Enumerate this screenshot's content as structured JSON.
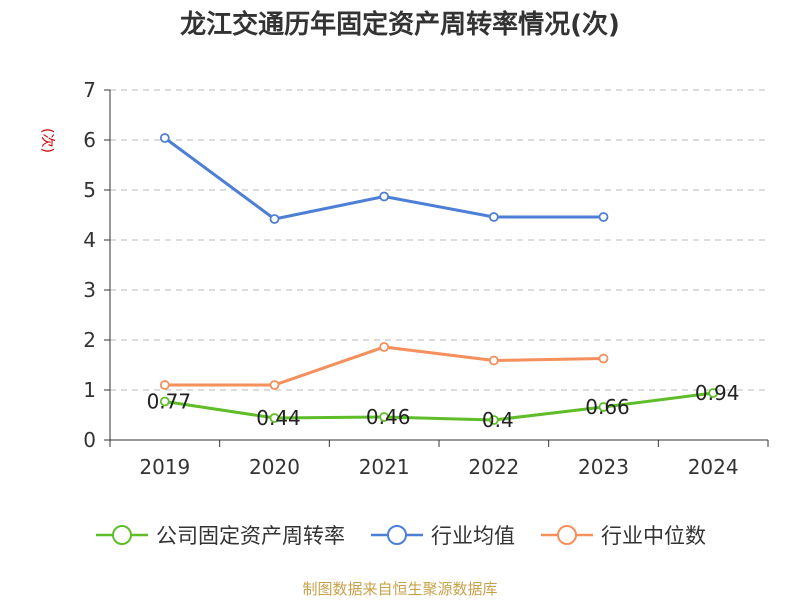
{
  "chart_data": {
    "type": "line",
    "title": "龙江交通历年固定资产周转率情况(次)",
    "ylabel": "(次)",
    "categories": [
      "2019",
      "2020",
      "2021",
      "2022",
      "2023",
      "2024"
    ],
    "ylim": [
      0,
      7
    ],
    "yticks": [
      "0",
      "1",
      "2",
      "3",
      "4",
      "5",
      "6",
      "7"
    ],
    "grid": true,
    "legend_position": "bottom",
    "series": [
      {
        "name": "公司固定资产周转率",
        "color": "#5fbd2a",
        "values": [
          0.77,
          0.44,
          0.46,
          0.4,
          0.66,
          0.94
        ],
        "labels": [
          "0.77",
          "0.44",
          "0.46",
          "0.4",
          "0.66",
          "0.94"
        ]
      },
      {
        "name": "行业均值",
        "color": "#4e7fd6",
        "values": [
          6.04,
          4.42,
          4.87,
          4.46,
          4.46,
          null
        ]
      },
      {
        "name": "行业中位数",
        "color": "#f58f5b",
        "values": [
          1.1,
          1.1,
          1.86,
          1.59,
          1.63,
          null
        ]
      }
    ]
  },
  "source": "制图数据来自恒生聚源数据库"
}
